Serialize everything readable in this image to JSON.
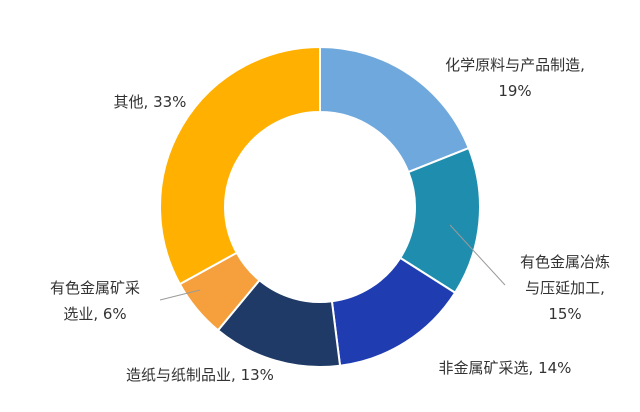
{
  "chart_data": {
    "type": "pie",
    "donut": true,
    "categories": [
      "化学原料与产品制造",
      "有色金属冶炼与压延加工",
      "非金属矿采选",
      "造纸与纸制品业",
      "有色金属矿采选业",
      "其他"
    ],
    "values": [
      19,
      15,
      14,
      13,
      6,
      33
    ],
    "colors": [
      "#6fa8dc",
      "#1f8eae",
      "#1f3db0",
      "#1f3a66",
      "#f5a03c",
      "#ffb000"
    ],
    "labels": [
      {
        "lines": [
          "化学原料与产品制造,",
          "19%"
        ]
      },
      {
        "lines": [
          "有色金属冶炼",
          "与压延加工,",
          "15%"
        ]
      },
      {
        "lines": [
          "非金属矿采选, 14%"
        ]
      },
      {
        "lines": [
          "造纸与纸制品业, 13%"
        ]
      },
      {
        "lines": [
          "有色金属矿采",
          "选业, 6%"
        ]
      },
      {
        "lines": [
          "其他, 33%"
        ]
      }
    ]
  }
}
